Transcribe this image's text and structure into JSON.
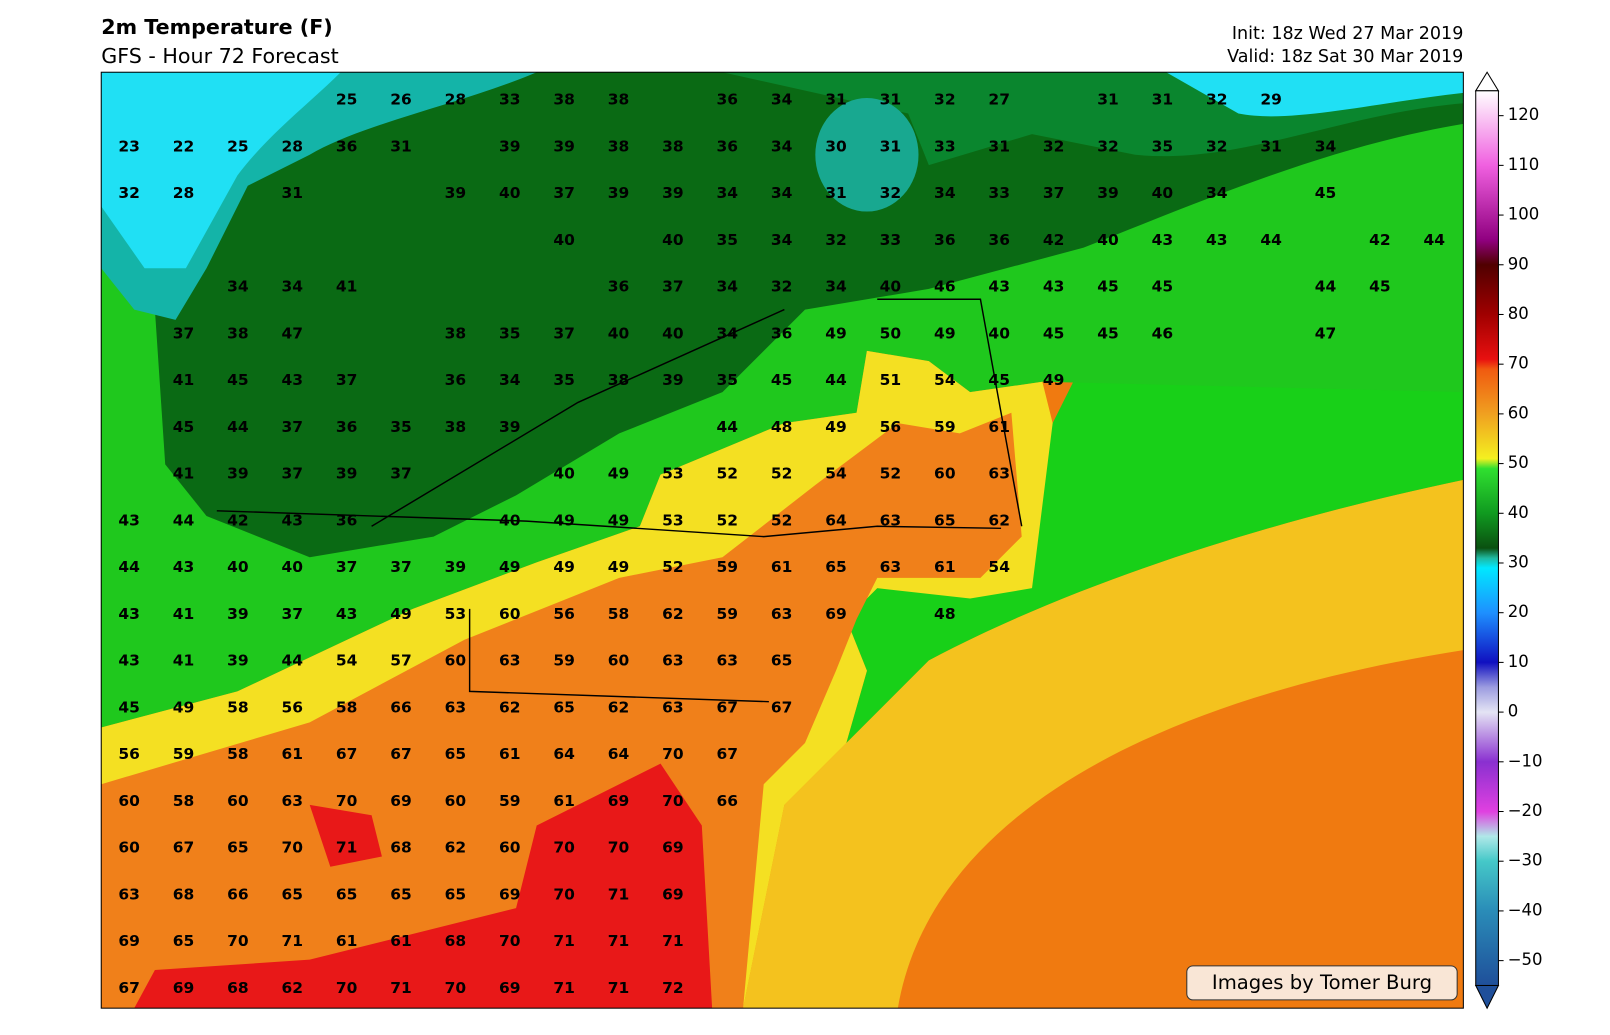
{
  "header": {
    "title": "2m Temperature (F)",
    "subtitle": "GFS - Hour 72 Forecast",
    "init": "Init: 18z Wed 27 Mar 2019",
    "valid": "Valid: 18z Sat 30 Mar 2019"
  },
  "credit": "Images by Tomer Burg",
  "grid": {
    "rows": [
      [
        null,
        null,
        null,
        null,
        25,
        26,
        28,
        33,
        38,
        38,
        null,
        36,
        34,
        31,
        31,
        32,
        27,
        null,
        31,
        31,
        32,
        29,
        null,
        null,
        null
      ],
      [
        23,
        22,
        25,
        28,
        36,
        31,
        null,
        39,
        39,
        38,
        38,
        36,
        34,
        30,
        31,
        33,
        31,
        32,
        32,
        35,
        32,
        31,
        34,
        null,
        null
      ],
      [
        32,
        28,
        null,
        31,
        null,
        null,
        39,
        40,
        37,
        39,
        39,
        34,
        34,
        31,
        32,
        34,
        33,
        37,
        39,
        40,
        34,
        null,
        45,
        null,
        null
      ],
      [
        null,
        null,
        null,
        null,
        null,
        null,
        null,
        null,
        40,
        null,
        40,
        35,
        34,
        32,
        33,
        36,
        36,
        42,
        40,
        43,
        43,
        44,
        null,
        42,
        44
      ],
      [
        null,
        null,
        34,
        34,
        41,
        null,
        null,
        null,
        null,
        36,
        37,
        34,
        32,
        34,
        40,
        46,
        43,
        43,
        45,
        45,
        null,
        null,
        44,
        45,
        null
      ],
      [
        null,
        37,
        38,
        47,
        null,
        null,
        38,
        35,
        37,
        40,
        40,
        34,
        36,
        49,
        50,
        49,
        40,
        45,
        45,
        46,
        null,
        null,
        47,
        null,
        null
      ],
      [
        null,
        41,
        45,
        43,
        37,
        null,
        36,
        34,
        35,
        38,
        39,
        35,
        45,
        44,
        51,
        54,
        45,
        49,
        null,
        null,
        null,
        null,
        null,
        null,
        null
      ],
      [
        null,
        45,
        44,
        37,
        36,
        35,
        38,
        39,
        null,
        null,
        null,
        44,
        48,
        49,
        56,
        59,
        61,
        null,
        null,
        null,
        null,
        null,
        null,
        null,
        null
      ],
      [
        null,
        41,
        39,
        37,
        39,
        37,
        null,
        null,
        40,
        49,
        53,
        52,
        52,
        54,
        52,
        60,
        63,
        null,
        null,
        null,
        null,
        null,
        null,
        null,
        null
      ],
      [
        43,
        44,
        42,
        43,
        36,
        null,
        null,
        40,
        49,
        49,
        53,
        52,
        52,
        64,
        63,
        65,
        62,
        null,
        null,
        null,
        null,
        null,
        null,
        null,
        null
      ],
      [
        44,
        43,
        40,
        40,
        37,
        37,
        39,
        49,
        49,
        49,
        52,
        59,
        61,
        65,
        63,
        61,
        54,
        null,
        null,
        null,
        null,
        null,
        null,
        null,
        null
      ],
      [
        43,
        41,
        39,
        37,
        43,
        49,
        53,
        60,
        56,
        58,
        62,
        59,
        63,
        69,
        null,
        48,
        null,
        null,
        null,
        null,
        null,
        null,
        null,
        null,
        null
      ],
      [
        43,
        41,
        39,
        44,
        54,
        57,
        60,
        63,
        59,
        60,
        63,
        63,
        65,
        null,
        null,
        null,
        null,
        null,
        null,
        null,
        null,
        null,
        null,
        null,
        null
      ],
      [
        45,
        49,
        58,
        56,
        58,
        66,
        63,
        62,
        65,
        62,
        63,
        67,
        67,
        null,
        null,
        null,
        null,
        null,
        null,
        null,
        null,
        null,
        null,
        null,
        null
      ],
      [
        56,
        59,
        58,
        61,
        67,
        67,
        65,
        61,
        64,
        64,
        70,
        67,
        null,
        null,
        null,
        null,
        null,
        null,
        null,
        null,
        null,
        null,
        null,
        null,
        null
      ],
      [
        60,
        58,
        60,
        63,
        70,
        69,
        60,
        59,
        61,
        69,
        70,
        66,
        null,
        null,
        null,
        null,
        null,
        null,
        null,
        null,
        null,
        null,
        null,
        null,
        null
      ],
      [
        60,
        67,
        65,
        70,
        71,
        68,
        62,
        60,
        70,
        70,
        69,
        null,
        null,
        null,
        null,
        null,
        null,
        null,
        null,
        null,
        null,
        null,
        null,
        null,
        null
      ],
      [
        63,
        68,
        66,
        65,
        65,
        65,
        65,
        69,
        70,
        71,
        69,
        null,
        null,
        null,
        null,
        null,
        null,
        null,
        null,
        null,
        null,
        null,
        null,
        null,
        null
      ],
      [
        69,
        65,
        70,
        71,
        61,
        61,
        68,
        70,
        71,
        71,
        71,
        null,
        null,
        null,
        null,
        null,
        null,
        null,
        null,
        null,
        null,
        null,
        null,
        null,
        null
      ],
      [
        67,
        69,
        68,
        62,
        70,
        71,
        70,
        69,
        71,
        71,
        72,
        null,
        null,
        null,
        null,
        null,
        null,
        null,
        null,
        null,
        null,
        null,
        null,
        null,
        null
      ]
    ]
  },
  "colorbar": {
    "lim": [
      -55,
      125
    ],
    "ticks": [
      120,
      110,
      100,
      90,
      80,
      70,
      60,
      50,
      40,
      30,
      20,
      10,
      0,
      {
        "value": -10,
        "label": "−10"
      },
      {
        "value": -20,
        "label": "−20"
      },
      {
        "value": -30,
        "label": "−30"
      },
      {
        "value": -40,
        "label": "−40"
      },
      {
        "value": -50,
        "label": "−50"
      }
    ],
    "colors": [
      {
        "value": -55,
        "color": "#1f4f9a"
      },
      {
        "value": -40,
        "color": "#2a8cb8"
      },
      {
        "value": -30,
        "color": "#45c8c8"
      },
      {
        "value": -25,
        "color": "#b0e8e8"
      },
      {
        "value": -20,
        "color": "#e040e0"
      },
      {
        "value": -10,
        "color": "#8a30d0"
      },
      {
        "value": 0,
        "color": "#e4e4f4"
      },
      {
        "value": 5,
        "color": "#9c9ce0"
      },
      {
        "value": 10,
        "color": "#1010c0"
      },
      {
        "value": 20,
        "color": "#1e90ff"
      },
      {
        "value": 29,
        "color": "#00e8ff"
      },
      {
        "value": 31,
        "color": "#20b8a0"
      },
      {
        "value": 33,
        "color": "#0a5010"
      },
      {
        "value": 40,
        "color": "#109a20"
      },
      {
        "value": 49,
        "color": "#30e030"
      },
      {
        "value": 51,
        "color": "#f4f020"
      },
      {
        "value": 60,
        "color": "#f0a020"
      },
      {
        "value": 69,
        "color": "#f05a10"
      },
      {
        "value": 71,
        "color": "#e81010"
      },
      {
        "value": 80,
        "color": "#a00000"
      },
      {
        "value": 90,
        "color": "#500000"
      },
      {
        "value": 95,
        "color": "#900080"
      },
      {
        "value": 110,
        "color": "#f060e0"
      },
      {
        "value": 125,
        "color": "#ffffff"
      }
    ]
  }
}
